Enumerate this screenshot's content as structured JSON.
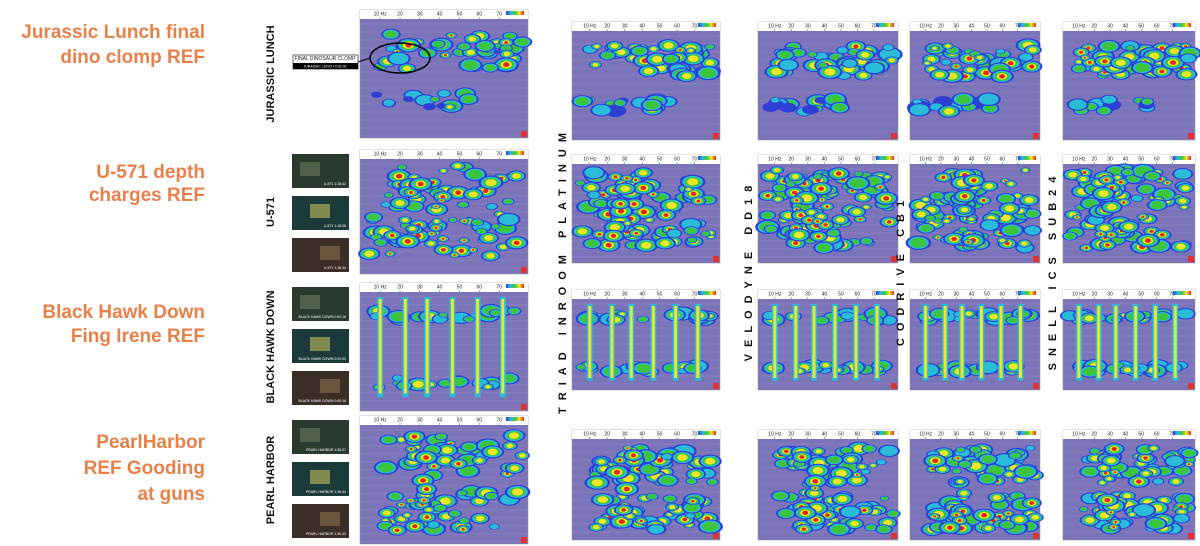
{
  "rows": [
    {
      "ref_label": [
        "Jurassic Lunch final",
        "dino clomp REF"
      ],
      "film": "JURASSIC LUNCH",
      "thumbnails": [],
      "annotation": {
        "callout": "FINAL DINOSAUR CLOMP",
        "timecode": "JURASSIC LUNCH 0:01:02"
      }
    },
    {
      "ref_label": [
        "U-571 depth",
        "charges REF"
      ],
      "film": "U-571",
      "thumbnails": [
        "U-571 1:18:42",
        "U-571 1:18:06",
        "U-571 1:18:34"
      ]
    },
    {
      "ref_label": [
        "Black Hawk Down",
        "Fing Irene REF"
      ],
      "film": "BLACK HAWK DOWN",
      "thumbnails": [
        "BLACK HAWK DOWN 0:00:16",
        "BLACK HAWK DOWN 0:00:52",
        "BLACK HAWK DOWN 0:00:16"
      ]
    },
    {
      "ref_label": [
        "PearlHarbor",
        "REF Gooding",
        "at guns"
      ],
      "film": "PEARL HARBOR",
      "thumbnails": [
        "PEARL HARBOR 1:36:07",
        "PEARL HARBOR 1:36:54",
        "PEARL HARBOR 1:36:43"
      ]
    }
  ],
  "columns": [
    "TRIAD INROOM PLATINUM",
    "VELODYNE DD18",
    "CODRIVE CB1",
    "SNELL ICS SUB24"
  ],
  "axis": {
    "ticks": [
      "10 Hz",
      "20",
      "30",
      "40",
      "50",
      "60",
      "70"
    ]
  }
}
